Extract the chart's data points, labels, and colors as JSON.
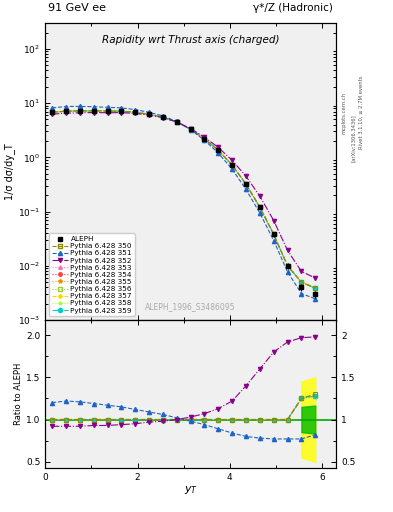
{
  "title_left": "91 GeV ee",
  "title_right": "γ*/Z (Hadronic)",
  "plot_title": "Rapidity wrt Thrust axis (charged)",
  "xlabel": "y_T",
  "ylabel_main": "1/σ dσ/dy_T",
  "ylabel_ratio": "Ratio to ALEPH",
  "watermark": "ALEPH_1996_S3486095",
  "rivet_text": "Rivet 3.1.10, ≥ 2.7M events",
  "arxiv_text": "[arXiv:1306.3436]",
  "mcplots_text": "mcplots.cern.ch",
  "x_data": [
    0.15,
    0.45,
    0.75,
    1.05,
    1.35,
    1.65,
    1.95,
    2.25,
    2.55,
    2.85,
    3.15,
    3.45,
    3.75,
    4.05,
    4.35,
    4.65,
    4.95,
    5.25,
    5.55,
    5.85
  ],
  "aleph_y": [
    6.8,
    7.1,
    7.2,
    7.2,
    7.15,
    7.1,
    6.8,
    6.2,
    5.5,
    4.5,
    3.3,
    2.2,
    1.35,
    0.72,
    0.32,
    0.12,
    0.038,
    0.01,
    0.004,
    0.003
  ],
  "aleph_yerr": [
    0.2,
    0.2,
    0.2,
    0.15,
    0.15,
    0.15,
    0.15,
    0.15,
    0.15,
    0.13,
    0.11,
    0.08,
    0.06,
    0.04,
    0.02,
    0.01,
    0.004,
    0.0012,
    0.0006,
    0.0005
  ],
  "r351": [
    1.2,
    1.22,
    1.21,
    1.19,
    1.17,
    1.15,
    1.12,
    1.09,
    1.06,
    1.02,
    0.98,
    0.94,
    0.89,
    0.84,
    0.8,
    0.78,
    0.77,
    0.77,
    0.77,
    0.82
  ],
  "r352": [
    0.92,
    0.92,
    0.92,
    0.93,
    0.93,
    0.94,
    0.95,
    0.97,
    0.98,
    1.0,
    1.03,
    1.07,
    1.13,
    1.22,
    1.4,
    1.6,
    1.8,
    1.92,
    1.97,
    1.98
  ],
  "r350": [
    1.0,
    1.0,
    1.0,
    1.0,
    1.0,
    1.0,
    1.0,
    1.0,
    1.0,
    1.0,
    1.0,
    1.0,
    1.0,
    1.0,
    1.0,
    1.0,
    1.0,
    1.0,
    1.25,
    1.3
  ],
  "r_close": [
    1.0,
    1.0,
    1.0,
    1.0,
    1.0,
    1.0,
    1.0,
    1.0,
    1.0,
    1.0,
    1.0,
    1.0,
    1.0,
    1.0,
    1.0,
    1.0,
    1.0,
    1.0,
    1.25,
    1.3
  ],
  "color_350": "#8B8B00",
  "color_351": "#1E64C8",
  "color_352": "#8B008B",
  "color_353": "#FF69B4",
  "color_354": "#FF4040",
  "color_355": "#FF8C00",
  "color_356": "#9ACD32",
  "color_357": "#FFD700",
  "color_358": "#ADFF2F",
  "color_359": "#00CED1",
  "band_yellow": "#FFFF00",
  "band_green": "#00BB00",
  "bg_color": "#f0f0f0"
}
